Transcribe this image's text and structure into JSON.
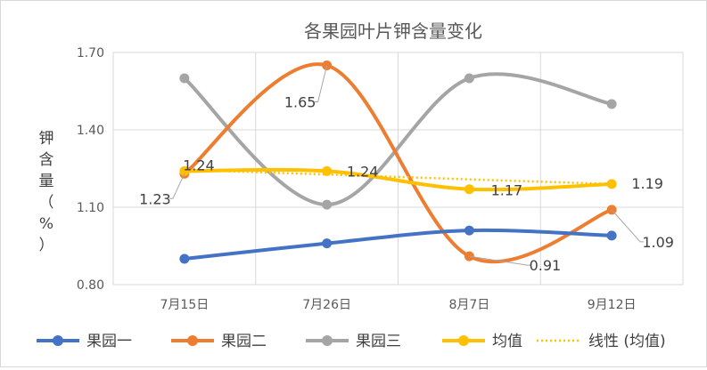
{
  "chart_data": {
    "type": "line",
    "title": "各果园叶片钾含量变化",
    "ylabel_lines": [
      "钾",
      "含",
      "量",
      "（",
      "%",
      "）"
    ],
    "categories": [
      "7月15日",
      "7月26日",
      "8月7日",
      "9月12日"
    ],
    "y_ticks": [
      "0.80",
      "1.10",
      "1.40",
      "1.70"
    ],
    "ylim": [
      0.8,
      1.7
    ],
    "grid": true,
    "legend_position": "bottom",
    "series": [
      {
        "name": "果园一",
        "values": [
          0.9,
          0.96,
          1.01,
          0.99
        ],
        "color": "#4472C4"
      },
      {
        "name": "果园二",
        "values": [
          1.23,
          1.65,
          0.91,
          1.09
        ],
        "color": "#ED7D31"
      },
      {
        "name": "果园三",
        "values": [
          1.6,
          1.11,
          1.6,
          1.5
        ],
        "color": "#A5A5A5"
      },
      {
        "name": "均值",
        "values": [
          1.24,
          1.24,
          1.17,
          1.19
        ],
        "color": "#FFC000"
      }
    ],
    "trendline": {
      "name": "线性 (均值)",
      "values": [
        1.245,
        1.227,
        1.208,
        1.19
      ],
      "color": "#FFC000"
    },
    "data_labels": [
      {
        "series": 1,
        "index": 0,
        "text": "1.23"
      },
      {
        "series": 1,
        "index": 1,
        "text": "1.65"
      },
      {
        "series": 1,
        "index": 2,
        "text": "0.91"
      },
      {
        "series": 1,
        "index": 3,
        "text": "1.09"
      },
      {
        "series": 3,
        "index": 0,
        "text": "1.24"
      },
      {
        "series": 3,
        "index": 1,
        "text": "1.24"
      },
      {
        "series": 3,
        "index": 2,
        "text": "1.17"
      },
      {
        "series": 3,
        "index": 3,
        "text": "1.19"
      }
    ]
  }
}
